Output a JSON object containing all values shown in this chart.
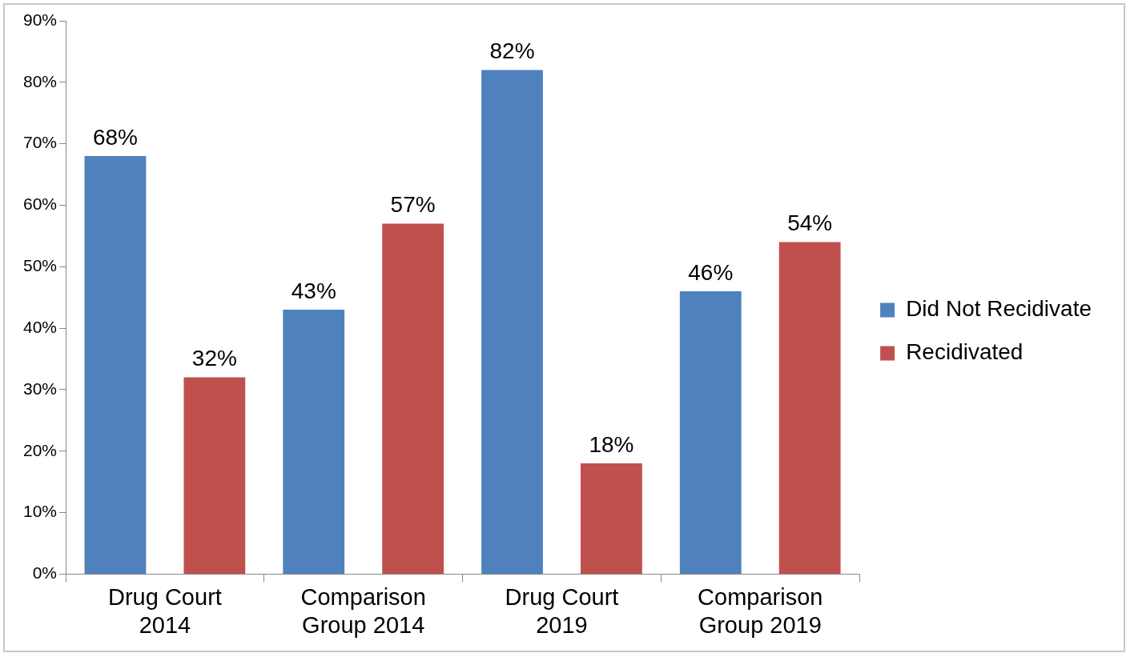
{
  "chart_data": {
    "type": "bar",
    "categories": [
      "Drug Court 2014",
      "Comparison Group 2014",
      "Drug Court 2019",
      "Comparison Group 2019"
    ],
    "series": [
      {
        "name": "Did Not Recidivate",
        "color": "#4f81bd",
        "values": [
          68,
          43,
          82,
          46
        ],
        "value_labels": [
          "68%",
          "43%",
          "82%",
          "46%"
        ]
      },
      {
        "name": "Recidivated",
        "color": "#c0504d",
        "values": [
          32,
          57,
          18,
          54
        ],
        "value_labels": [
          "32%",
          "57%",
          "18%",
          "54%"
        ]
      }
    ],
    "ylim": [
      0,
      90
    ],
    "yticks": [
      {
        "value": 0,
        "label": "0%"
      },
      {
        "value": 10,
        "label": "10%"
      },
      {
        "value": 20,
        "label": "20%"
      },
      {
        "value": 30,
        "label": "30%"
      },
      {
        "value": 40,
        "label": "40%"
      },
      {
        "value": 50,
        "label": "50%"
      },
      {
        "value": 60,
        "label": "60%"
      },
      {
        "value": 70,
        "label": "70%"
      },
      {
        "value": 80,
        "label": "80%"
      },
      {
        "value": 90,
        "label": "90%"
      }
    ],
    "grid": false,
    "legend": "right"
  }
}
